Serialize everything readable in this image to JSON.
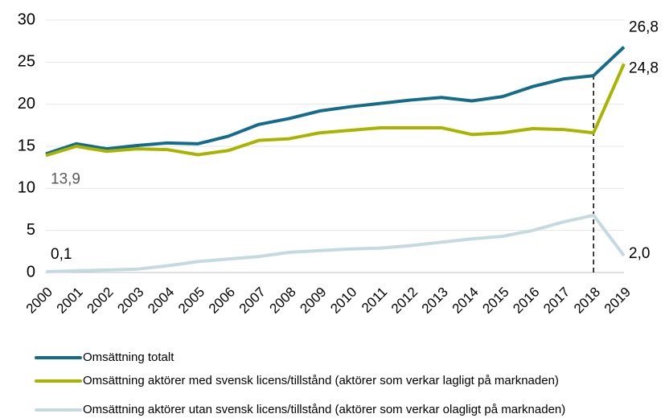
{
  "chart_data": {
    "type": "line",
    "categories": [
      "2000",
      "2001",
      "2002",
      "2003",
      "2004",
      "2005",
      "2006",
      "2007",
      "2008",
      "2009",
      "2010",
      "2011",
      "2012",
      "2013",
      "2014",
      "2015",
      "2016",
      "2017",
      "2018",
      "2019"
    ],
    "series": [
      {
        "name": "Omsättning totalt",
        "color": "#156b8a",
        "values": [
          14.1,
          15.3,
          14.7,
          15.1,
          15.4,
          15.3,
          16.2,
          17.6,
          18.3,
          19.2,
          19.7,
          20.1,
          20.5,
          20.8,
          20.4,
          20.9,
          22.1,
          23.0,
          23.4,
          26.8
        ],
        "value_labels": [
          null,
          null,
          null,
          null,
          null,
          null,
          null,
          null,
          null,
          null,
          null,
          null,
          null,
          null,
          null,
          null,
          null,
          null,
          null,
          "26,8"
        ]
      },
      {
        "name": "Omsättning aktörer med svensk licens/tillstånd (aktörer som verkar lagligt på marknaden)",
        "color": "#a8b400",
        "values": [
          13.9,
          15.0,
          14.4,
          14.7,
          14.6,
          14.0,
          14.5,
          15.7,
          15.9,
          16.6,
          16.9,
          17.2,
          17.2,
          17.2,
          16.4,
          16.6,
          17.1,
          17.0,
          16.6,
          24.8
        ],
        "value_labels": [
          "13,9",
          null,
          null,
          null,
          null,
          null,
          null,
          null,
          null,
          null,
          null,
          null,
          null,
          null,
          null,
          null,
          null,
          null,
          null,
          "24,8"
        ]
      },
      {
        "name": "Omsättning aktörer utan svensk licens/tillstånd (aktörer som verkar olagligt på marknaden)",
        "color": "#c5d9e1",
        "values": [
          0.1,
          0.2,
          0.3,
          0.4,
          0.8,
          1.3,
          1.6,
          1.9,
          2.4,
          2.6,
          2.8,
          2.9,
          3.2,
          3.6,
          4.0,
          4.3,
          5.0,
          6.0,
          6.8,
          2.0
        ],
        "value_labels": [
          "0,1",
          null,
          null,
          null,
          null,
          null,
          null,
          null,
          null,
          null,
          null,
          null,
          null,
          null,
          null,
          null,
          null,
          null,
          null,
          "2,0"
        ]
      }
    ],
    "ylim": [
      0,
      30
    ],
    "yticks": [
      0,
      5,
      10,
      15,
      20,
      25,
      30
    ],
    "grid": true,
    "reference_line": {
      "x": "2018"
    },
    "legend": "bottom"
  }
}
